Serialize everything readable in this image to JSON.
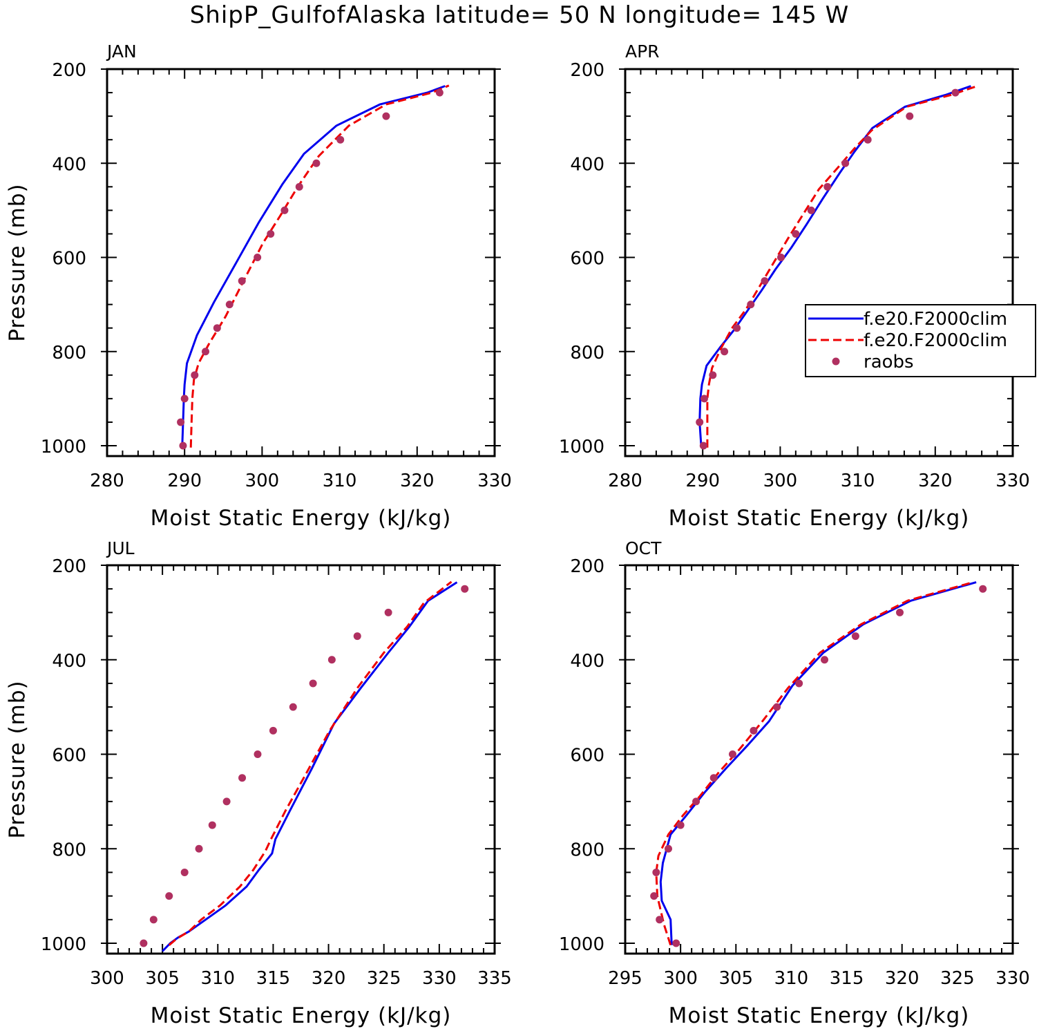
{
  "title": "ShipP_GulfofAlaska  latitude= 50 N longitude= 145 W",
  "legend": {
    "panel": 1,
    "entries": [
      {
        "label": "f.e20.F2000clim",
        "color": "#0000ee",
        "style": "solid"
      },
      {
        "label": "f.e20.F2000clim",
        "color": "#ee0000",
        "style": "dashed"
      },
      {
        "label": "raobs",
        "color": "#b03060",
        "style": "marker"
      }
    ]
  },
  "chart_data": [
    {
      "type": "line",
      "panel_label": "JAN",
      "xlabel": "Moist Static Energy (kJ/kg)",
      "ylabel": "Pressure (mb)",
      "xlim": [
        280,
        330
      ],
      "ylim": [
        1000,
        200
      ],
      "y_reversed": true,
      "xticks": [
        280,
        290,
        300,
        310,
        320,
        330
      ],
      "yticks": [
        200,
        400,
        600,
        800,
        1000
      ],
      "series": [
        {
          "color": "#0000ee",
          "style": "solid",
          "points": [
            [
              289.7,
              1000
            ],
            [
              289.8,
              950
            ],
            [
              289.9,
              900
            ],
            [
              290.0,
              870
            ],
            [
              290.3,
              825
            ],
            [
              291.6,
              765
            ],
            [
              293.8,
              695
            ],
            [
              296.7,
              610
            ],
            [
              299.6,
              525
            ],
            [
              302.6,
              445
            ],
            [
              305.4,
              380
            ],
            [
              309.6,
              320
            ],
            [
              315.2,
              275
            ],
            [
              321.3,
              250
            ],
            [
              323.6,
              236
            ]
          ]
        },
        {
          "color": "#ee0000",
          "style": "dashed",
          "points": [
            [
              290.8,
              1004
            ],
            [
              290.9,
              950
            ],
            [
              291.0,
              900
            ],
            [
              291.2,
              860
            ],
            [
              291.8,
              825
            ],
            [
              293.1,
              785
            ],
            [
              295.3,
              725
            ],
            [
              297.6,
              650
            ],
            [
              300.1,
              570
            ],
            [
              302.4,
              510
            ],
            [
              304.6,
              450
            ],
            [
              307.3,
              385
            ],
            [
              311.2,
              320
            ],
            [
              316.0,
              275
            ],
            [
              321.9,
              250
            ],
            [
              324.1,
              235
            ]
          ]
        },
        {
          "color": "#b03060",
          "style": "marker",
          "points": [
            [
              289.8,
              1000
            ],
            [
              289.5,
              950
            ],
            [
              290.0,
              900
            ],
            [
              291.3,
              850
            ],
            [
              292.7,
              800
            ],
            [
              294.2,
              750
            ],
            [
              295.8,
              700
            ],
            [
              297.4,
              650
            ],
            [
              299.4,
              600
            ],
            [
              301.1,
              550
            ],
            [
              302.9,
              500
            ],
            [
              304.8,
              450
            ],
            [
              307.0,
              400
            ],
            [
              310.1,
              350
            ],
            [
              316.0,
              300
            ],
            [
              322.9,
              250
            ]
          ]
        }
      ]
    },
    {
      "type": "line",
      "panel_label": "APR",
      "xlabel": "Moist Static Energy (kJ/kg)",
      "ylabel": "",
      "xlim": [
        280,
        330
      ],
      "ylim": [
        1000,
        200
      ],
      "y_reversed": true,
      "xticks": [
        280,
        290,
        300,
        310,
        320,
        330
      ],
      "yticks": [
        200,
        400,
        600,
        800,
        1000
      ],
      "series": [
        {
          "color": "#0000ee",
          "style": "solid",
          "points": [
            [
              289.8,
              1000
            ],
            [
              289.6,
              950
            ],
            [
              289.7,
              900
            ],
            [
              289.9,
              870
            ],
            [
              290.5,
              830
            ],
            [
              292.3,
              790
            ],
            [
              294.0,
              755
            ],
            [
              295.7,
              715
            ],
            [
              297.6,
              670
            ],
            [
              299.4,
              625
            ],
            [
              301.4,
              580
            ],
            [
              303.4,
              530
            ],
            [
              305.5,
              475
            ],
            [
              307.7,
              420
            ],
            [
              309.6,
              375
            ],
            [
              311.9,
              325
            ],
            [
              316.1,
              280
            ],
            [
              321.3,
              255
            ],
            [
              324.6,
              236
            ]
          ]
        },
        {
          "color": "#ee0000",
          "style": "dashed",
          "points": [
            [
              290.6,
              1004
            ],
            [
              290.6,
              950
            ],
            [
              290.6,
              900
            ],
            [
              290.8,
              870
            ],
            [
              291.2,
              835
            ],
            [
              292.3,
              795
            ],
            [
              293.8,
              750
            ],
            [
              295.6,
              710
            ],
            [
              297.4,
              660
            ],
            [
              299.2,
              610
            ],
            [
              301.0,
              560
            ],
            [
              302.9,
              510
            ],
            [
              305.0,
              455
            ],
            [
              307.4,
              410
            ],
            [
              309.5,
              370
            ],
            [
              311.8,
              330
            ],
            [
              316.3,
              280
            ],
            [
              322.0,
              255
            ],
            [
              325.6,
              235
            ]
          ]
        },
        {
          "color": "#b03060",
          "style": "marker",
          "points": [
            [
              290.1,
              1000
            ],
            [
              289.6,
              950
            ],
            [
              290.2,
              900
            ],
            [
              291.3,
              850
            ],
            [
              292.8,
              800
            ],
            [
              294.4,
              750
            ],
            [
              296.2,
              700
            ],
            [
              298.0,
              650
            ],
            [
              300.1,
              600
            ],
            [
              302.0,
              550
            ],
            [
              304.0,
              500
            ],
            [
              306.1,
              450
            ],
            [
              308.4,
              400
            ],
            [
              311.3,
              350
            ],
            [
              316.7,
              300
            ],
            [
              322.6,
              250
            ]
          ]
        }
      ]
    },
    {
      "type": "line",
      "panel_label": "JUL",
      "xlabel": "Moist Static Energy (kJ/kg)",
      "ylabel": "Pressure (mb)",
      "xlim": [
        300,
        335
      ],
      "ylim": [
        1000,
        200
      ],
      "y_reversed": true,
      "xticks": [
        300,
        305,
        310,
        315,
        320,
        325,
        330,
        335
      ],
      "yticks": [
        200,
        400,
        600,
        800,
        1000
      ],
      "series": [
        {
          "color": "#0000ee",
          "style": "solid",
          "points": [
            [
              305.0,
              1017
            ],
            [
              305.7,
              1000
            ],
            [
              306.4,
              988
            ],
            [
              307.4,
              975
            ],
            [
              308.9,
              950
            ],
            [
              310.7,
              920
            ],
            [
              312.6,
              880
            ],
            [
              313.7,
              845
            ],
            [
              314.9,
              810
            ],
            [
              315.2,
              780
            ],
            [
              316.5,
              720
            ],
            [
              318.5,
              630
            ],
            [
              320.5,
              535
            ],
            [
              322.9,
              460
            ],
            [
              325.4,
              385
            ],
            [
              327.3,
              330
            ],
            [
              329.0,
              275
            ],
            [
              331.6,
              236
            ]
          ]
        },
        {
          "color": "#ee0000",
          "style": "dashed",
          "points": [
            [
              305.6,
              1004
            ],
            [
              306.3,
              990
            ],
            [
              307.4,
              975
            ],
            [
              308.5,
              950
            ],
            [
              310.2,
              920
            ],
            [
              312.0,
              880
            ],
            [
              313.2,
              845
            ],
            [
              314.3,
              805
            ],
            [
              314.8,
              780
            ],
            [
              316.1,
              720
            ],
            [
              318.0,
              640
            ],
            [
              320.1,
              550
            ],
            [
              322.6,
              460
            ],
            [
              325.0,
              385
            ],
            [
              327.1,
              330
            ],
            [
              328.6,
              280
            ],
            [
              331.1,
              235
            ]
          ]
        },
        {
          "color": "#b03060",
          "style": "marker",
          "points": [
            [
              303.3,
              1000
            ],
            [
              304.2,
              950
            ],
            [
              305.6,
              900
            ],
            [
              307.0,
              850
            ],
            [
              308.3,
              800
            ],
            [
              309.5,
              750
            ],
            [
              310.8,
              700
            ],
            [
              312.2,
              650
            ],
            [
              313.6,
              600
            ],
            [
              315.0,
              550
            ],
            [
              316.8,
              500
            ],
            [
              318.6,
              450
            ],
            [
              320.3,
              400
            ],
            [
              322.6,
              350
            ],
            [
              325.4,
              300
            ],
            [
              332.3,
              250
            ]
          ]
        }
      ]
    },
    {
      "type": "line",
      "panel_label": "OCT",
      "xlabel": "Moist Static Energy (kJ/kg)",
      "ylabel": "",
      "xlim": [
        295,
        330
      ],
      "ylim": [
        1000,
        200
      ],
      "y_reversed": true,
      "xticks": [
        295,
        300,
        305,
        310,
        315,
        320,
        325,
        330
      ],
      "yticks": [
        200,
        400,
        600,
        800,
        1000
      ],
      "series": [
        {
          "color": "#0000ee",
          "style": "solid",
          "points": [
            [
              299.2,
              1004
            ],
            [
              299.1,
              950
            ],
            [
              298.3,
              910
            ],
            [
              298.2,
              870
            ],
            [
              298.4,
              830
            ],
            [
              299.1,
              770
            ],
            [
              300.5,
              730
            ],
            [
              302.2,
              680
            ],
            [
              304.1,
              630
            ],
            [
              306.1,
              580
            ],
            [
              308.0,
              530
            ],
            [
              310.1,
              455
            ],
            [
              312.9,
              385
            ],
            [
              316.5,
              325
            ],
            [
              320.8,
              275
            ],
            [
              326.7,
              236
            ]
          ]
        },
        {
          "color": "#ee0000",
          "style": "dashed",
          "points": [
            [
              299.1,
              1004
            ],
            [
              298.5,
              960
            ],
            [
              297.9,
              900
            ],
            [
              297.8,
              850
            ],
            [
              298.0,
              815
            ],
            [
              298.9,
              770
            ],
            [
              300.2,
              730
            ],
            [
              301.7,
              690
            ],
            [
              303.4,
              640
            ],
            [
              305.3,
              590
            ],
            [
              307.4,
              530
            ],
            [
              309.7,
              460
            ],
            [
              312.6,
              385
            ],
            [
              316.3,
              325
            ],
            [
              320.5,
              275
            ],
            [
              326.4,
              236
            ]
          ]
        },
        {
          "color": "#b03060",
          "style": "marker",
          "points": [
            [
              299.6,
              1000
            ],
            [
              298.1,
              950
            ],
            [
              297.6,
              900
            ],
            [
              297.8,
              850
            ],
            [
              298.9,
              800
            ],
            [
              300.0,
              750
            ],
            [
              301.4,
              700
            ],
            [
              303.0,
              650
            ],
            [
              304.7,
              600
            ],
            [
              306.6,
              550
            ],
            [
              308.7,
              500
            ],
            [
              310.7,
              450
            ],
            [
              313.0,
              400
            ],
            [
              315.8,
              350
            ],
            [
              319.8,
              300
            ],
            [
              327.3,
              250
            ]
          ]
        }
      ]
    }
  ]
}
